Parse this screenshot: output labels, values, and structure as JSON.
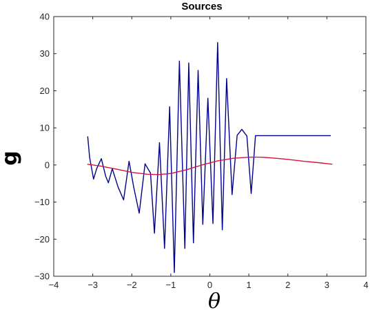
{
  "chart_data": {
    "type": "line",
    "title": "Sources",
    "xlabel": "θ",
    "ylabel": "g",
    "xlim": [
      -4,
      4
    ],
    "ylim": [
      -30,
      40
    ],
    "xticks": [
      -4,
      -3,
      -2,
      -1,
      0,
      1,
      2,
      3,
      4
    ],
    "yticks": [
      -30,
      -20,
      -10,
      0,
      10,
      20,
      30,
      40
    ],
    "xtick_labels": [
      "−4",
      "−3",
      "−2",
      "−1",
      "0",
      "1",
      "2",
      "3",
      "4"
    ],
    "ytick_labels": [
      "−30",
      "−20",
      "−10",
      "0",
      "10",
      "20",
      "30",
      "40"
    ],
    "grid": false,
    "series": [
      {
        "color": "#00008b",
        "x": [
          -3.13,
          -3.08,
          -2.98,
          -2.9,
          -2.78,
          -2.67,
          -2.6,
          -2.5,
          -2.35,
          -2.21,
          -2.07,
          -1.95,
          -1.81,
          -1.66,
          -1.52,
          -1.42,
          -1.29,
          -1.16,
          -1.03,
          -0.91,
          -0.78,
          -0.64,
          -0.54,
          -0.42,
          -0.3,
          -0.18,
          -0.05,
          0.08,
          0.2,
          0.32,
          0.43,
          0.57,
          0.7,
          0.82,
          0.95,
          1.06,
          1.17,
          1.3,
          1.44,
          1.56,
          1.68,
          1.81,
          1.94,
          2.06,
          2.19,
          2.35,
          2.54,
          2.67,
          2.82,
          2.97,
          3.1
        ],
        "y": [
          7.7,
          2.0,
          -3.8,
          -1.0,
          1.7,
          -3.0,
          -4.8,
          -1.0,
          -6.0,
          -9.4,
          1.0,
          -6.0,
          -13.0,
          0.3,
          -2.2,
          -18.4,
          6.0,
          -22.5,
          15.7,
          -29.0,
          28.0,
          -22.5,
          27.5,
          -21.0,
          25.5,
          -16.0,
          18.0,
          -15.8,
          33.0,
          -17.5,
          23.3,
          -8.0,
          8.0,
          9.6,
          7.8,
          -7.7,
          7.9,
          7.9,
          7.9,
          7.9,
          7.9,
          7.9,
          7.9,
          7.9,
          7.9,
          7.9,
          7.9,
          7.9,
          7.9,
          7.9,
          7.9
        ]
      },
      {
        "color": "#d4143c",
        "x": [
          -3.14,
          -2.8,
          -2.4,
          -2.0,
          -1.6,
          -1.3,
          -1.0,
          -0.6,
          -0.2,
          0.2,
          0.6,
          1.0,
          1.3,
          1.6,
          2.0,
          2.4,
          2.8,
          3.14
        ],
        "y": [
          0.2,
          -0.3,
          -1.1,
          -2.0,
          -2.5,
          -2.6,
          -2.3,
          -1.3,
          0.0,
          1.1,
          1.8,
          2.1,
          2.1,
          1.9,
          1.5,
          1.0,
          0.6,
          0.2
        ]
      }
    ]
  }
}
